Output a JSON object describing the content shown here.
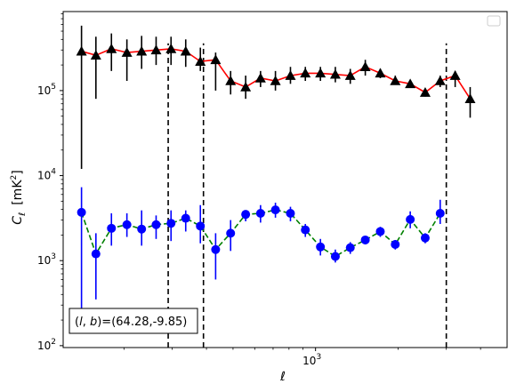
{
  "chart_data": {
    "type": "scatter",
    "xlabel": "ℓ",
    "ylabel": "C_ℓ [mK²]",
    "ylabel_main": "C",
    "ylabel_sub": "ℓ",
    "ylabel_units": "[mK",
    "ylabel_units_sup": "2",
    "ylabel_units_close": "]",
    "x_scale": "log",
    "y_scale": "log",
    "xlim": [
      120,
      5000
    ],
    "ylim": [
      95,
      850000
    ],
    "x_major_ticks": [
      {
        "value": 1000,
        "base": "10",
        "exp": "3"
      }
    ],
    "x_minor_ticks": [
      200,
      300,
      400,
      500,
      600,
      700,
      800,
      900,
      2000,
      3000,
      4000
    ],
    "y_major_ticks": [
      {
        "value": 100,
        "base": "10",
        "exp": "2"
      },
      {
        "value": 1000,
        "base": "10",
        "exp": "3"
      },
      {
        "value": 10000,
        "base": "10",
        "exp": "4"
      },
      {
        "value": 100000,
        "base": "10",
        "exp": "5"
      }
    ],
    "grid": false,
    "legend": "upper right (empty)",
    "annotation": "(l, b)=(64.28,-9.85)",
    "annotation_parts": {
      "open": "(",
      "l": "l",
      "comma": ", ",
      "b": "b",
      "rest": ")=(64.28,-9.85)"
    },
    "vertical_lines": [
      290,
      390,
      3000
    ],
    "vertical_line_color": "#000000",
    "series": [
      {
        "marker": "triangle",
        "marker_color": "#000000",
        "line_color": "#ff0000",
        "line_style": "solid",
        "error_color": "#000000",
        "x": [
          140,
          158,
          180,
          205,
          232,
          262,
          297,
          336,
          380,
          432,
          490,
          556,
          630,
          714,
          810,
          918,
          1042,
          1181,
          1339,
          1519,
          1723,
          1954,
          2216,
          2513,
          2850,
          3232,
          3666,
          4158
        ],
        "y": [
          290000,
          260000,
          310000,
          280000,
          290000,
          300000,
          310000,
          290000,
          220000,
          230000,
          130000,
          110000,
          140000,
          130000,
          150000,
          160000,
          160000,
          155000,
          150000,
          190000,
          160000,
          130000,
          120000,
          95000,
          130000,
          150000,
          80000,
          0
        ],
        "y_low": [
          12000,
          80000,
          170000,
          130000,
          180000,
          200000,
          200000,
          190000,
          170000,
          100000,
          90000,
          80000,
          110000,
          100000,
          120000,
          130000,
          130000,
          125000,
          120000,
          150000,
          140000,
          120000,
          110000,
          85000,
          110000,
          110000,
          48000,
          0
        ],
        "y_high": [
          580000,
          430000,
          470000,
          400000,
          440000,
          430000,
          430000,
          400000,
          320000,
          280000,
          170000,
          150000,
          170000,
          170000,
          190000,
          190000,
          190000,
          190000,
          180000,
          230000,
          180000,
          150000,
          130000,
          105000,
          150000,
          170000,
          110000,
          0
        ]
      },
      {
        "marker": "circle",
        "marker_color": "#0000ff",
        "line_color": "#008000",
        "line_style": "dashed",
        "error_color": "#0000ff",
        "x": [
          140,
          158,
          180,
          205,
          232,
          262,
          297,
          336,
          380,
          432,
          490,
          556,
          630,
          714,
          810,
          918,
          1042,
          1181,
          1339,
          1519,
          1723,
          1954,
          2216,
          2513,
          2850,
          3232,
          3666,
          4158
        ],
        "y": [
          3700,
          1200,
          2400,
          2650,
          2350,
          2650,
          2750,
          3150,
          2550,
          1350,
          2100,
          3500,
          3600,
          3950,
          3600,
          2300,
          1450,
          1120,
          1420,
          1750,
          2200,
          1550,
          3050,
          1850,
          3600,
          0,
          0,
          0
        ],
        "y_low": [
          200,
          350,
          1500,
          1900,
          1500,
          1800,
          1700,
          2200,
          1600,
          600,
          1300,
          2900,
          2800,
          3200,
          2900,
          1900,
          1150,
          950,
          1200,
          1550,
          1900,
          1350,
          2400,
          1600,
          2700,
          0,
          0,
          0
        ],
        "y_high": [
          7300,
          2100,
          3600,
          3600,
          3900,
          3400,
          3900,
          3900,
          4500,
          2100,
          3000,
          3900,
          4500,
          4800,
          4300,
          2700,
          1800,
          1350,
          1650,
          1950,
          2500,
          1750,
          3800,
          2100,
          5200,
          0,
          0,
          0
        ]
      }
    ]
  }
}
